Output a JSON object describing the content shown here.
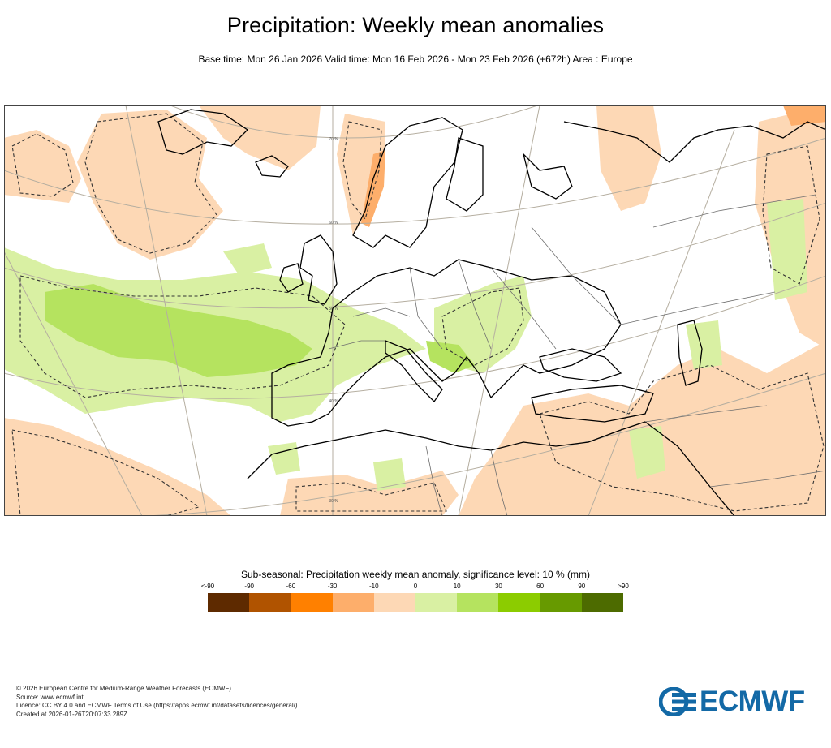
{
  "title": "Precipitation: Weekly mean anomalies",
  "subtitle": "Base time: Mon 26 Jan 2026 Valid time: Mon 16 Feb 2026 - Mon 23 Feb 2026 (+672h) Area : Europe",
  "map": {
    "latitude_labels": [
      "70°N",
      "60°N",
      "50°N",
      "40°N",
      "30°N"
    ],
    "colors": {
      "land_border": "#000000",
      "graticule": "#b5aea0",
      "border": "#6e6e6e",
      "dry": "#fdd8b5",
      "dry2": "#fdae6b",
      "wet": "#d9f0a3",
      "wet2": "#b5e35f"
    }
  },
  "legend": {
    "title": "Sub-seasonal: Precipitation weekly mean anomaly, significance level: 10 % (mm)",
    "ticks": [
      "<-90",
      "-90",
      "-60",
      "-30",
      "-10",
      "0",
      "10",
      "30",
      "60",
      "90",
      ">90"
    ],
    "colors": [
      "#5e2a00",
      "#b05300",
      "#ff8000",
      "#fdae6b",
      "#fdd8b5",
      "#d9f0a3",
      "#b5e35f",
      "#8ccc00",
      "#679a00",
      "#4d6b00"
    ]
  },
  "footer": {
    "copyright": "© 2026 European Centre for Medium-Range Weather Forecasts (ECMWF)",
    "source": "Source: www.ecmwf.int",
    "licence": "Licence: CC BY 4.0 and ECMWF Terms of Use (https://apps.ecmwf.int/datasets/licences/general/)",
    "created": "Created at 2026-01-26T20:07:33.289Z"
  },
  "logo": {
    "text": "ECMWF",
    "color": "#1369a6"
  }
}
